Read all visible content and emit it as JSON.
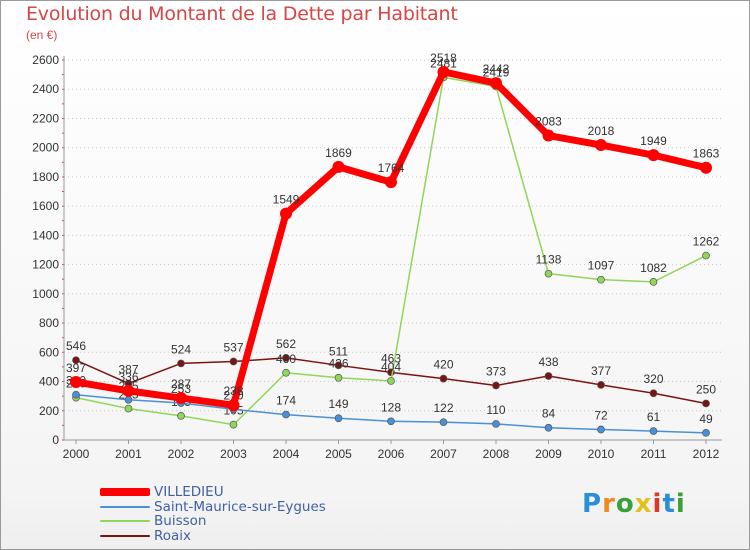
{
  "header": {
    "title": "Evolution du Montant de la Dette par Habitant",
    "unit": "(en €)"
  },
  "logo": {
    "text": "Proxiti",
    "colors": [
      "#2a8fd6",
      "#f08a1c",
      "#3aa03a",
      "#e2c21a",
      "#d93a2a",
      "#2a8fd6",
      "#3aa03a"
    ]
  },
  "chart_data": {
    "type": "line",
    "title": "Evolution du Montant de la Dette par Habitant",
    "ylabel": "(en €)",
    "xlabel": "",
    "x": [
      "2000",
      "2001",
      "2002",
      "2003",
      "2004",
      "2005",
      "2006",
      "2007",
      "2008",
      "2009",
      "2010",
      "2011",
      "2012"
    ],
    "ylim": [
      0,
      2600
    ],
    "yticks": [
      0,
      200,
      400,
      600,
      800,
      1000,
      1200,
      1400,
      1600,
      1800,
      2000,
      2200,
      2400,
      2600
    ],
    "grid": "horizontal dotted",
    "legend_position": "bottom-left",
    "series": [
      {
        "name": "Roaix",
        "color": "#7a1414",
        "values": [
          546,
          387,
          524,
          537,
          562,
          511,
          463,
          420,
          373,
          438,
          377,
          320,
          250
        ],
        "labels": [
          "546",
          "387",
          "524",
          "537",
          "562",
          "511",
          "463",
          "420",
          "373",
          "438",
          "377",
          "320",
          "250"
        ]
      },
      {
        "name": "Buisson",
        "color": "#8fd65a",
        "values": [
          290,
          215,
          165,
          105,
          460,
          426,
          404,
          2481,
          2419,
          1138,
          1097,
          1082,
          1262
        ],
        "labels": [
          "290",
          "215",
          "165",
          "105",
          "460",
          "426",
          "404",
          "2481",
          "2419",
          "1138",
          "1097",
          "1082",
          "1262"
        ]
      },
      {
        "name": "Saint-Maurice-sur-Eygues",
        "color": "#4a90d9",
        "values": [
          310,
          275,
          253,
          210,
          174,
          149,
          128,
          122,
          110,
          84,
          72,
          61,
          49
        ],
        "labels": [
          "310",
          "275",
          "253",
          "210",
          "174",
          "149",
          "128",
          "122",
          "110",
          "84",
          "72",
          "61",
          "49"
        ]
      },
      {
        "name": "VILLEDIEU",
        "color": "#ff0000",
        "values": [
          397,
          336,
          287,
          238,
          1549,
          1869,
          1764,
          2518,
          2442,
          2083,
          2018,
          1949,
          1863
        ],
        "labels": [
          "397",
          "336",
          "287",
          "238",
          "1549",
          "1869",
          "1764",
          "2518",
          "2442",
          "2083",
          "2018",
          "1949",
          "1863"
        ]
      }
    ],
    "legend": [
      "VILLEDIEU",
      "Saint-Maurice-sur-Eygues",
      "Buisson",
      "Roaix"
    ]
  }
}
